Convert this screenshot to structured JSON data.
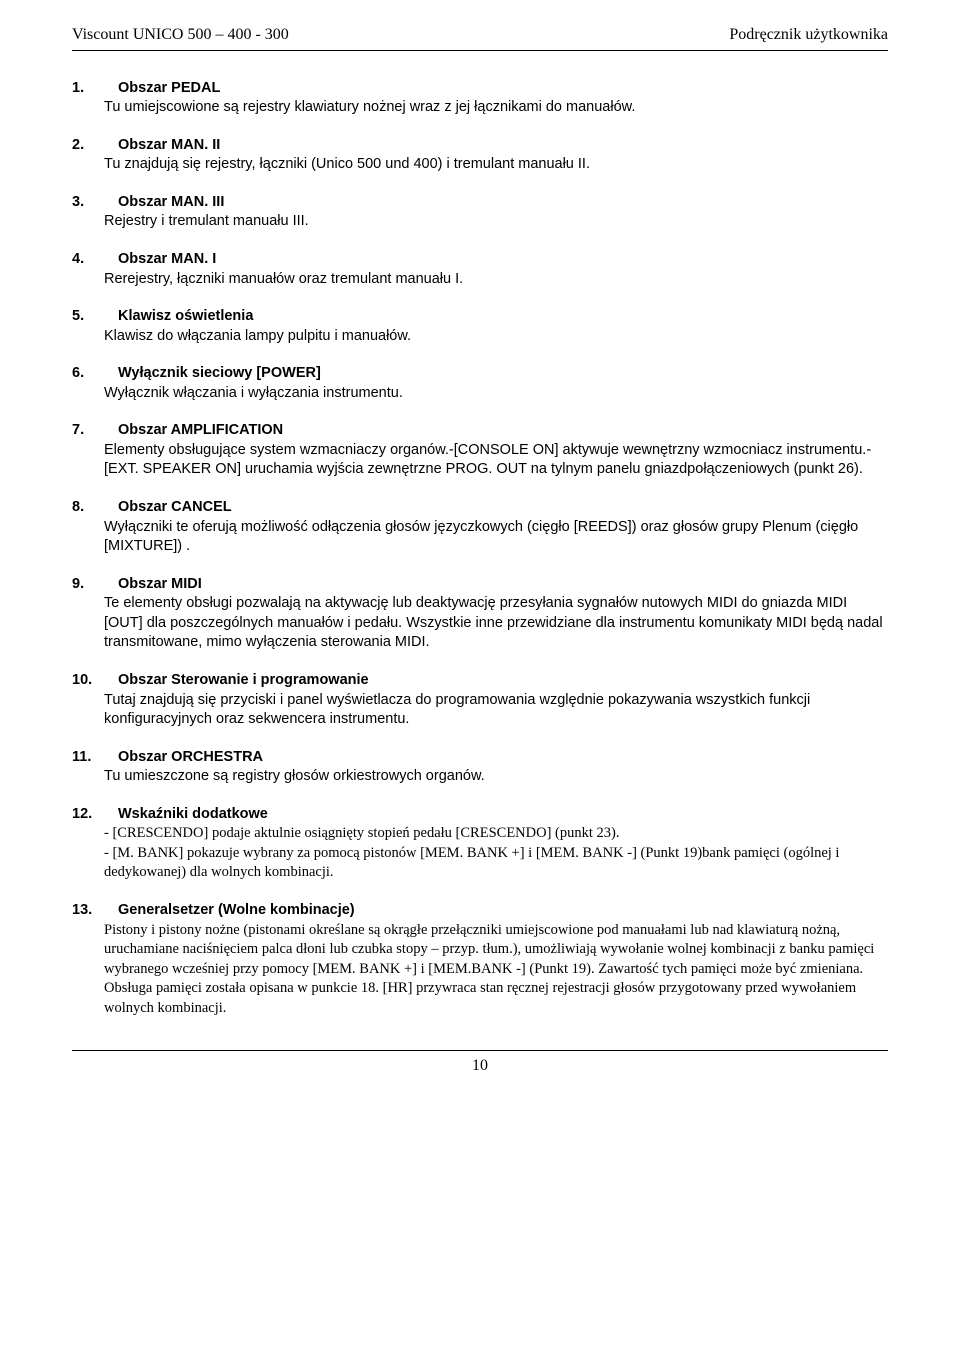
{
  "header": {
    "left": "Viscount  UNICO 500 – 400 - 300",
    "right": "Podręcznik  użytkownika"
  },
  "sections": [
    {
      "num": "1.",
      "title": "Obszar PEDAL",
      "body": "Tu umiejscowione są rejestry klawiatury nożnej wraz z jej łącznikami do manuałów."
    },
    {
      "num": "2.",
      "title": "Obszar MAN. II",
      "body": "Tu znajdują się rejestry, łączniki (Unico 500 und 400)  i tremulant manuału II."
    },
    {
      "num": "3.",
      "title": "Obszar MAN. III",
      "body": "Rejestry i tremulant manuału III."
    },
    {
      "num": "4.",
      "title": "Obszar MAN. I",
      "body": "Rerejestry, łączniki manuałów oraz tremulant manuału I."
    },
    {
      "num": "5.",
      "title": "Klawisz oświetlenia",
      "body": "Klawisz do włączania lampy pulpitu i manuałów."
    },
    {
      "num": "6.",
      "title": "Wyłącznik sieciowy [POWER]",
      "body": "Wyłącznik włączania i wyłączania instrumentu."
    },
    {
      "num": "7.",
      "title": "Obszar AMPLIFICATION",
      "body": "Elementy obsługujące system wzmacniaczy organów.-[CONSOLE ON] aktywuje wewnętrzny wzmocniacz instrumentu.-[EXT. SPEAKER ON] uruchamia wyjścia zewnętrzne PROG. OUT na tylnym panelu gniazdpołączeniowych (punkt 26)."
    },
    {
      "num": "8.",
      "title": "Obszar CANCEL",
      "body": "Wyłączniki te oferują możliwość odłączenia głosów języczkowych (cięgło [REEDS]) oraz głosów grupy Plenum (cięgło [MIXTURE]) ."
    },
    {
      "num": "9.",
      "title": "Obszar MIDI",
      "body": "Te elementy obsługi pozwalają na aktywację lub deaktywację przesyłania sygnałów nutowych MIDI do  gniazda MIDI [OUT] dla poszczególnych manuałów i pedału. Wszystkie inne przewidziane dla instrumentu komunikaty MIDI będą nadal transmitowane, mimo wyłączenia sterowania MIDI."
    },
    {
      "num": "10.",
      "title": "Obszar Sterowanie i programowanie",
      "body": "Tutaj znajdują się przyciski i panel wyświetlacza do programowania względnie pokazywania wszystkich funkcji konfiguracyjnych oraz sekwencera instrumentu."
    },
    {
      "num": "11.",
      "title": "Obszar ORCHESTRA",
      "body": "Tu umieszczone są registry głosów orkiestrowych organów."
    },
    {
      "num": "12.",
      "title": "Wskaźniki dodatkowe",
      "body": "- [CRESCENDO] podaje aktulnie osiągnięty stopień pedału [CRESCENDO]  (punkt 23).\n- [M. BANK] pokazuje wybrany za pomocą pistonów [MEM. BANK +] i [MEM. BANK -] (Punkt 19)bank pamięci (ogólnej i dedykowanej) dla wolnych kombinacji.",
      "body_tnr": true
    },
    {
      "num": "13.",
      "title": "Generalsetzer (Wolne kombinacje)",
      "body": "Pistony i pistony nożne (pistonami określane są okrągłe przełączniki umiejscowione pod manuałami lub nad klawiaturą nożną, uruchamiane naciśnięciem palca dłoni lub czubka stopy – przyp. tłum.), umożliwiają wywołanie wolnej kombinacji z banku pamięci wybranego wcześniej przy pomocy [MEM. BANK +] i [MEM.BANK -] (Punkt 19). Zawartość tych pamięci może być zmieniana. Obsługa pamięci została opisana w punkcie 18. [HR] przywraca stan ręcznej rejestracji  głosów przygotowany przed wywołaniem wolnych kombinacji.",
      "body_tnr": true
    }
  ],
  "footer": {
    "page": "10"
  }
}
